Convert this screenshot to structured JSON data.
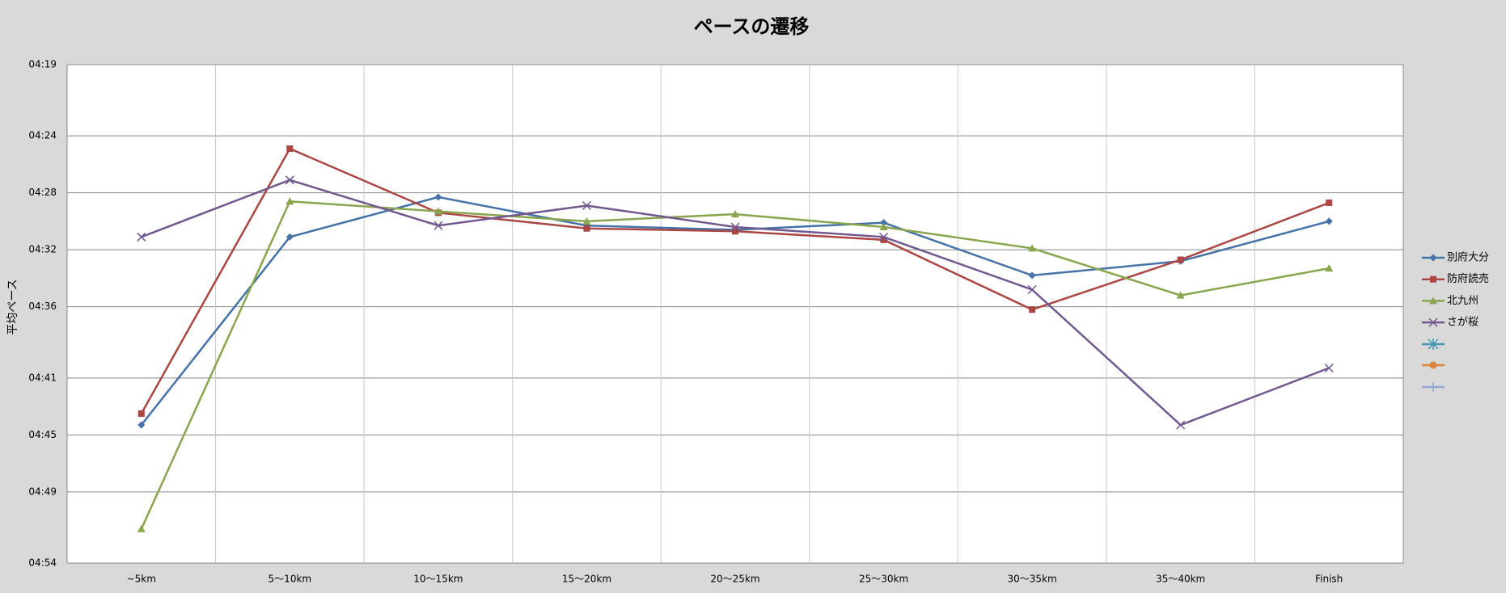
{
  "chart_data": {
    "type": "line",
    "title": "ペースの遷移",
    "y_label": "平均ペース",
    "categories": [
      "~5km",
      "5～10km",
      "10～15km",
      "15～20km",
      "20～25km",
      "25～30km",
      "30～35km",
      "35～40km",
      "Finish"
    ],
    "series": [
      {
        "name": "別府大分",
        "color": "#4572a7",
        "marker": "diamond",
        "values": [
          284.3,
          271.1,
          268.3,
          270.3,
          270.6,
          270.1,
          273.8,
          272.8,
          270.0
        ]
      },
      {
        "name": "防府読売",
        "color": "#aa4643",
        "marker": "square",
        "values": [
          283.5,
          264.9,
          269.4,
          270.5,
          270.7,
          271.3,
          276.2,
          272.7,
          268.7
        ]
      },
      {
        "name": "北九州",
        "color": "#89a54e",
        "marker": "triangle",
        "values": [
          291.6,
          268.6,
          269.3,
          270.0,
          269.5,
          270.4,
          271.9,
          275.2,
          273.3
        ]
      },
      {
        "name": "さが桜",
        "color": "#71588f",
        "marker": "x",
        "values": [
          271.1,
          267.1,
          270.3,
          268.9,
          270.4,
          271.1,
          274.8,
          284.3,
          280.3
        ]
      }
    ],
    "ylim": [
      259,
      294
    ],
    "y_reversed": true,
    "yticks": [
      {
        "value": 259,
        "label": "04:19"
      },
      {
        "value": 264,
        "label": "04:24"
      },
      {
        "value": 268,
        "label": "04:28"
      },
      {
        "value": 272,
        "label": "04:32"
      },
      {
        "value": 276,
        "label": "04:36"
      },
      {
        "value": 281,
        "label": "04:41"
      },
      {
        "value": 285,
        "label": "04:45"
      },
      {
        "value": 289,
        "label": "04:49"
      },
      {
        "value": 294,
        "label": "04:54"
      }
    ],
    "grid": true,
    "legend": "right"
  }
}
